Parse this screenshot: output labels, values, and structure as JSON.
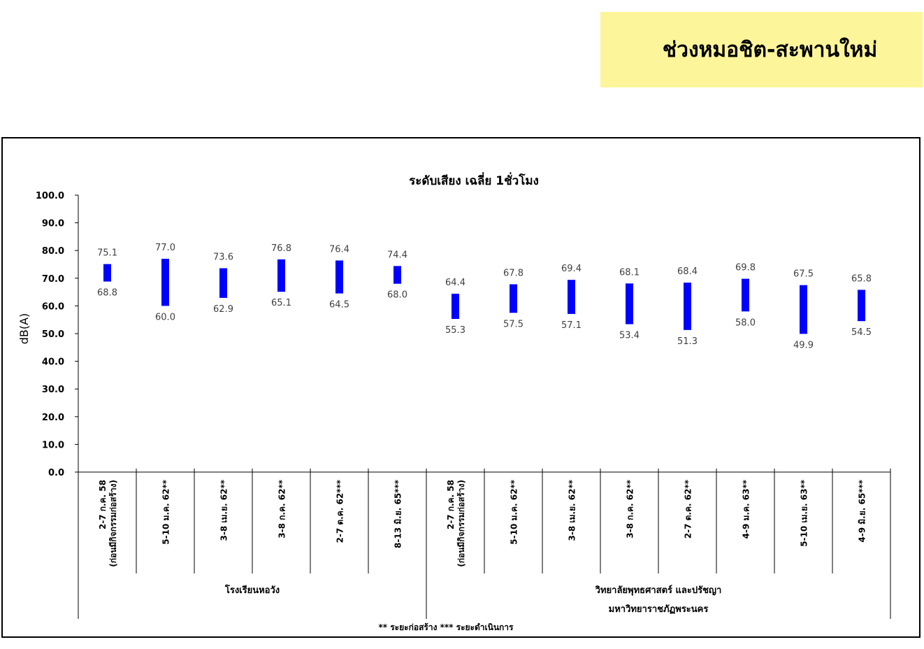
{
  "banner": {
    "title": "ช่วงหมอชิต-สะพานใหม่"
  },
  "colors": {
    "bar": "#0000ff",
    "banner": "#fdf59a",
    "data_label": "#404040"
  },
  "chart_data": {
    "type": "bar",
    "title": "ระดับเสียง เฉลี่ย 1ชั่วโมง",
    "xlabel": "",
    "ylabel": "dB(A)",
    "ylim": [
      0,
      100
    ],
    "yticks": [
      "0.0",
      "10.0",
      "20.0",
      "30.0",
      "40.0",
      "50.0",
      "60.0",
      "70.0",
      "80.0",
      "90.0",
      "100.0"
    ],
    "grid": false,
    "bar_style": "floating range (min–max)",
    "categories": [
      [
        "2-7 ก.ค. 58",
        "(ก่อนมีกิจกรรมก่อสร้าง)"
      ],
      [
        "5-10 ม.ค. 62**"
      ],
      [
        "3-8 เม.ย. 62**"
      ],
      [
        "3-8 ก.ค. 62**"
      ],
      [
        "2-7 ต.ค. 62***"
      ],
      [
        "8-13 มิ.ย. 65***"
      ],
      [
        "2-7 ก.ค. 58",
        "(ก่อนมีกิจกรรมก่อสร้าง)"
      ],
      [
        "5-10 ม.ค. 62**"
      ],
      [
        "3-8 เม.ย. 62**"
      ],
      [
        "3-8 ก.ค. 62**"
      ],
      [
        "2-7 ต.ค. 62**"
      ],
      [
        "4-9 ม.ค. 63**"
      ],
      [
        "5-10 เม.ย. 63**"
      ],
      [
        "4-9 มิ.ย. 65***"
      ]
    ],
    "max": [
      75.1,
      77.0,
      73.6,
      76.8,
      76.4,
      74.4,
      64.4,
      67.8,
      69.4,
      68.1,
      68.4,
      69.8,
      67.5,
      65.8
    ],
    "min": [
      68.8,
      60.0,
      62.9,
      65.1,
      64.5,
      68.0,
      55.3,
      57.5,
      57.1,
      53.4,
      51.3,
      58.0,
      49.9,
      54.5
    ],
    "max_labels": [
      "75.1",
      "77.0",
      "73.6",
      "76.8",
      "76.4",
      "74.4",
      "64.4",
      "67.8",
      "69.4",
      "68.1",
      "68.4",
      "69.8",
      "67.5",
      "65.8"
    ],
    "min_labels": [
      "68.8",
      "60.0",
      "62.9",
      "65.1",
      "64.5",
      "68.0",
      "55.3",
      "57.5",
      "57.1",
      "53.4",
      "51.3",
      "58.0",
      "49.9",
      "54.5"
    ],
    "groups": [
      {
        "lines": [
          "โรงเรียนหอวัง"
        ],
        "count": 6
      },
      {
        "lines": [
          "วิทยาลัยพุทธศาสตร์ และปรัชญา",
          "มหาวิทยาราชภัฏพระนคร"
        ],
        "count": 8
      }
    ],
    "footnote": "** ระยะก่อสร้าง    *** ระยะดำเนินการ"
  }
}
